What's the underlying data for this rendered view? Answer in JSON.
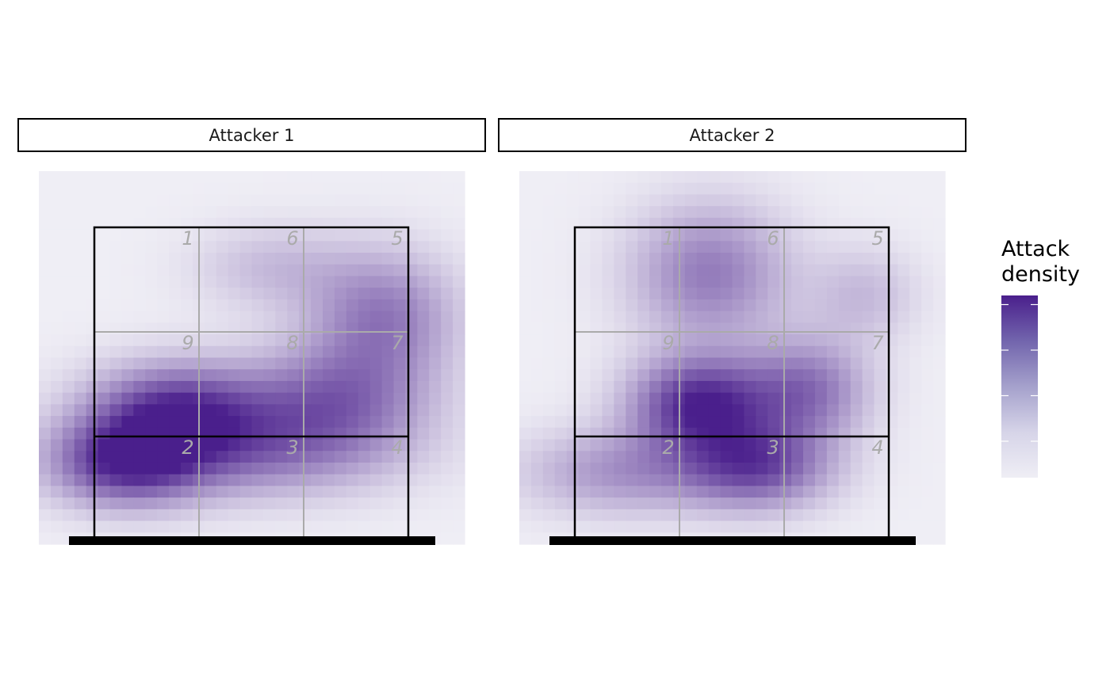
{
  "chart_data": {
    "type": "heatmap",
    "subtype": "volleyball attack density (2D kernel density) over court zones",
    "facets": [
      {
        "title": "Attacker 1",
        "density_peaks": [
          {
            "zone": 9,
            "cx": 0.26,
            "cy": 0.67,
            "sx": 0.35,
            "sy": 0.22,
            "w": 0.86
          },
          {
            "zone": "2/9",
            "cx": 0.1,
            "cy": 0.87,
            "sx": 0.3,
            "sy": 0.2,
            "w": 0.79
          },
          {
            "zone": 7,
            "cx": 0.76,
            "cy": 0.64,
            "sx": 0.38,
            "sy": 0.26,
            "w": 0.62
          },
          {
            "zone": 5,
            "cx": 0.92,
            "cy": 0.33,
            "sx": 0.3,
            "sy": 0.3,
            "w": 0.58
          },
          {
            "zone": 6,
            "cx": 0.57,
            "cy": 0.15,
            "sx": 0.32,
            "sy": 0.2,
            "w": 0.25
          },
          {
            "zone": 8,
            "cx": 0.45,
            "cy": 0.83,
            "sx": 0.6,
            "sy": 0.22,
            "w": 0.52
          }
        ]
      },
      {
        "title": "Attacker 2",
        "density_peaks": [
          {
            "zone": 9,
            "cx": 0.4,
            "cy": 0.65,
            "sx": 0.28,
            "sy": 0.22,
            "w": 1.0
          },
          {
            "zone": 3,
            "cx": 0.58,
            "cy": 0.88,
            "sx": 0.3,
            "sy": 0.2,
            "w": 0.79
          },
          {
            "zone": "6/1",
            "cx": 0.43,
            "cy": 0.17,
            "sx": 0.32,
            "sy": 0.32,
            "w": 0.58
          },
          {
            "zone": 7,
            "cx": 0.74,
            "cy": 0.6,
            "sx": 0.25,
            "sy": 0.24,
            "w": 0.62
          },
          {
            "zone": 5,
            "cx": 0.92,
            "cy": 0.25,
            "sx": 0.22,
            "sy": 0.22,
            "w": 0.26
          },
          {
            "zone": 2,
            "cx": 0.15,
            "cy": 0.9,
            "sx": 0.4,
            "sy": 0.2,
            "w": 0.45
          }
        ]
      }
    ],
    "zones": [
      {
        "label": "1",
        "row": 0,
        "col": 0
      },
      {
        "label": "6",
        "row": 0,
        "col": 1
      },
      {
        "label": "5",
        "row": 0,
        "col": 2
      },
      {
        "label": "9",
        "row": 1,
        "col": 0
      },
      {
        "label": "8",
        "row": 1,
        "col": 1
      },
      {
        "label": "7",
        "row": 1,
        "col": 2
      },
      {
        "label": "2",
        "row": 2,
        "col": 0
      },
      {
        "label": "3",
        "row": 2,
        "col": 1
      },
      {
        "label": "4",
        "row": 2,
        "col": 2
      }
    ],
    "legend": {
      "title_lines": [
        "Attack",
        "density"
      ],
      "placement": "right",
      "low_color": "#efeef5",
      "high_color": "#4a1f8c"
    },
    "colors": {
      "low": "#efeef5",
      "high": "#4a1f8c",
      "court_line": "#000000",
      "zone_line": "#aaaaaa",
      "zone_label": "#aaaaaa"
    },
    "grid": false
  }
}
